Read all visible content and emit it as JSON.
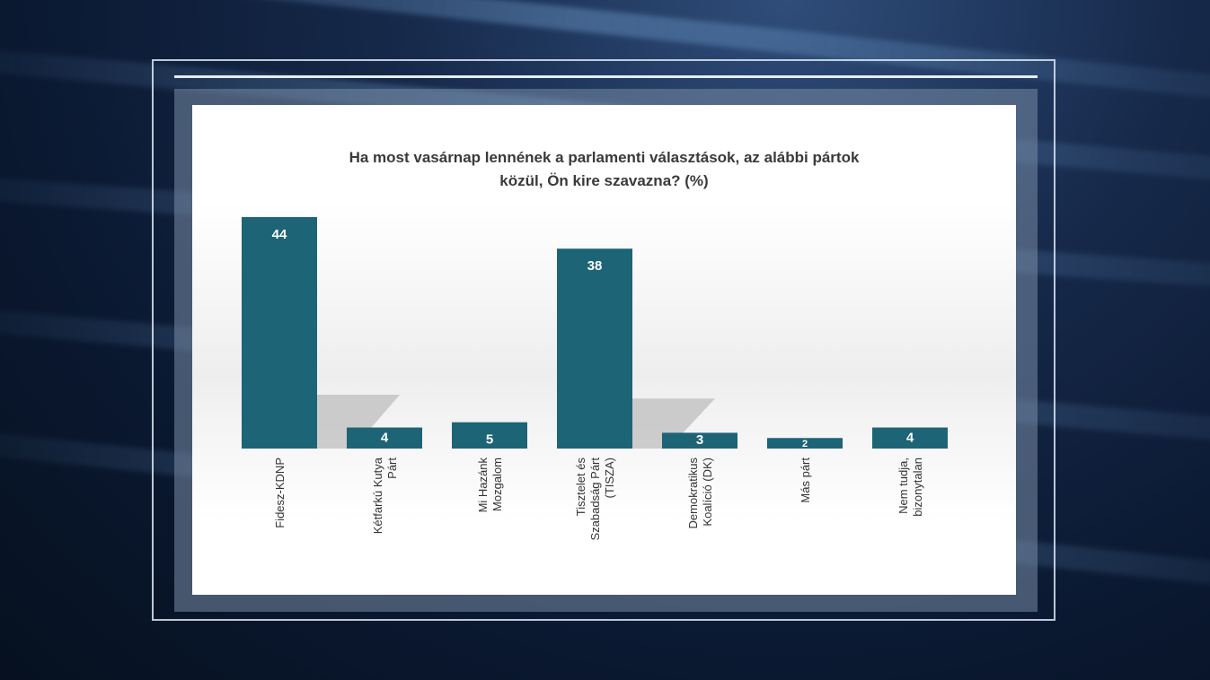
{
  "chart_data": {
    "type": "bar",
    "title_lines": [
      "Ha most vasárnap lennének a parlamenti választások, az alábbi pártok",
      "közül, Ön kire szavazna? (%)"
    ],
    "categories": [
      [
        "Fidesz-KDNP"
      ],
      [
        "Kétfarkú Kutya",
        "Párt"
      ],
      [
        "Mi Hazánk",
        "Mozgalom"
      ],
      [
        "Tisztelet és",
        "Szabadság Párt",
        "(TISZA)"
      ],
      [
        "Demokratikus",
        "Koalíció (DK)"
      ],
      [
        "Más párt"
      ],
      [
        "Nem tudja,",
        "bizonytalan"
      ]
    ],
    "values": [
      44,
      4,
      5,
      38,
      3,
      2,
      4
    ],
    "ylim": [
      0,
      44
    ],
    "grid": false,
    "bar_color": "#1d6477",
    "label_color": "#ffffff"
  }
}
